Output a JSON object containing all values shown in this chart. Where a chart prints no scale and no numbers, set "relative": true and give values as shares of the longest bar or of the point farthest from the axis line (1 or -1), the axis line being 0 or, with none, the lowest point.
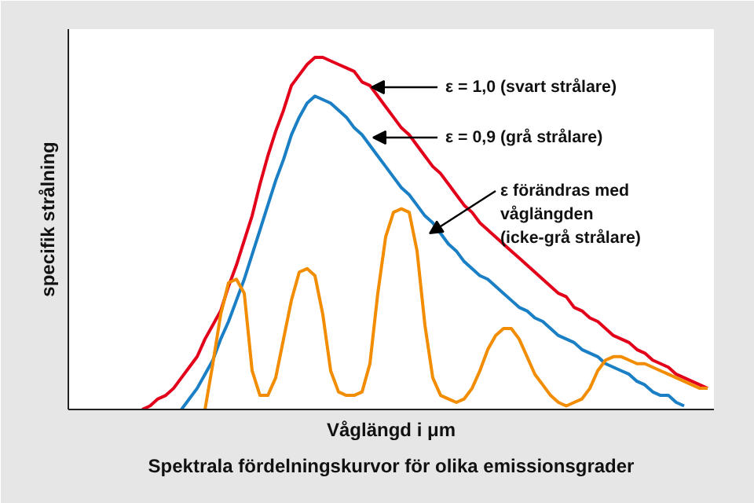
{
  "chart_data": {
    "type": "line",
    "relative": true,
    "title": "Spektrala fördelningskurvor för olika emissionsgrader",
    "xlabel": "Våglängd i μm",
    "ylabel": "specifik strålning",
    "categories": [
      null,
      null,
      null,
      null,
      null,
      null,
      null,
      null,
      null,
      null,
      null,
      null,
      null,
      null,
      null,
      null,
      null,
      null,
      null,
      null,
      null,
      null,
      null,
      null,
      null,
      null,
      null,
      null,
      null,
      null,
      null,
      null,
      null,
      null,
      null,
      null,
      null,
      null,
      null,
      null,
      null,
      null,
      null,
      null,
      null,
      null,
      null,
      null,
      null,
      null,
      null,
      null,
      null,
      null,
      null,
      null,
      null,
      null,
      null,
      null,
      null,
      null,
      null,
      null,
      null,
      null,
      null,
      null,
      null,
      null,
      null,
      null,
      null,
      null
    ],
    "series": [
      {
        "color": "#e2001a",
        "values": [
          null,
          0,
          0.01,
          0.03,
          0.04,
          0.06,
          0.09,
          0.12,
          0.15,
          0.2,
          0.24,
          0.28,
          0.35,
          0.41,
          0.48,
          0.55,
          0.64,
          0.72,
          0.79,
          0.85,
          0.92,
          0.95,
          0.98,
          1.0,
          1.0,
          0.99,
          0.98,
          0.97,
          0.96,
          0.93,
          0.92,
          0.89,
          0.86,
          0.83,
          0.8,
          0.78,
          0.75,
          0.72,
          0.69,
          0.67,
          0.64,
          0.61,
          0.58,
          0.56,
          0.53,
          0.51,
          0.49,
          0.47,
          0.45,
          0.43,
          0.41,
          0.39,
          0.37,
          0.35,
          0.33,
          0.32,
          0.29,
          0.28,
          0.26,
          0.25,
          0.23,
          0.21,
          0.2,
          0.19,
          0.17,
          0.16,
          0.14,
          0.13,
          0.12,
          0.1,
          0.09,
          0.08,
          0.07,
          0.06
        ]
      },
      {
        "color": "#1a7fc4",
        "values": [
          null,
          null,
          null,
          null,
          null,
          null,
          0,
          0.03,
          0.06,
          0.1,
          0.14,
          0.2,
          0.25,
          0.31,
          0.37,
          0.44,
          0.51,
          0.58,
          0.65,
          0.71,
          0.78,
          0.83,
          0.87,
          0.89,
          0.88,
          0.87,
          0.85,
          0.83,
          0.8,
          0.78,
          0.75,
          0.72,
          0.69,
          0.66,
          0.63,
          0.61,
          0.58,
          0.55,
          0.53,
          0.5,
          0.47,
          0.45,
          0.42,
          0.4,
          0.38,
          0.37,
          0.35,
          0.33,
          0.31,
          0.29,
          0.28,
          0.26,
          0.25,
          0.23,
          0.21,
          0.2,
          0.19,
          0.17,
          0.16,
          0.15,
          0.13,
          0.12,
          0.11,
          0.1,
          0.08,
          0.07,
          0.05,
          0.04,
          0.04,
          0.02,
          0.01,
          null,
          null,
          null
        ]
      },
      {
        "color": "#f28c00",
        "values": [
          null,
          null,
          null,
          null,
          null,
          null,
          null,
          null,
          null,
          0,
          0.13,
          0.27,
          0.36,
          0.37,
          0.33,
          0.11,
          0.04,
          0.04,
          0.09,
          0.2,
          0.31,
          0.39,
          0.4,
          0.38,
          0.27,
          0.11,
          0.05,
          0.04,
          0.04,
          0.05,
          0.13,
          0.33,
          0.49,
          0.56,
          0.57,
          0.56,
          0.45,
          0.24,
          0.09,
          0.04,
          0.03,
          0.02,
          0.03,
          0.06,
          0.11,
          0.17,
          0.21,
          0.23,
          0.23,
          0.2,
          0.15,
          0.1,
          0.07,
          0.04,
          0.02,
          0.01,
          0.02,
          0.03,
          0.06,
          0.11,
          0.14,
          0.15,
          0.15,
          0.14,
          0.13,
          0.13,
          0.12,
          0.11,
          0.1,
          0.09,
          0.08,
          0.07,
          0.06,
          0.06
        ]
      }
    ],
    "annotations": [
      "ε = 1,0 (svart strålare)",
      "ε = 0,9 (grå strålare)",
      "ε  förändras med\nvåglängden\n(icke-grå strålare)"
    ]
  }
}
